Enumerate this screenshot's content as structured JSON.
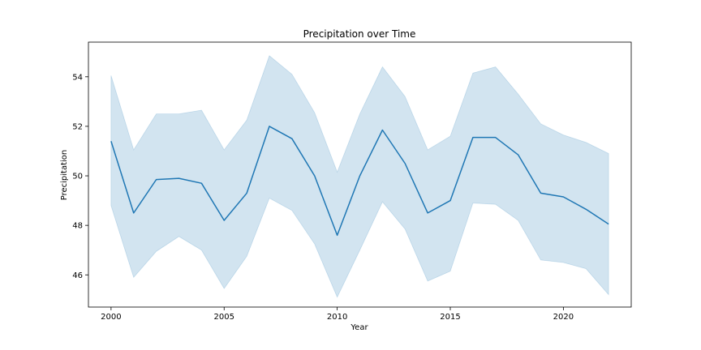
{
  "chart_data": {
    "type": "line",
    "title": "Precipitation over Time",
    "xlabel": "Year",
    "ylabel": "Precipitation",
    "xlim": [
      1999,
      2023
    ],
    "ylim": [
      44.7,
      55.4
    ],
    "xticks": [
      2000,
      2005,
      2010,
      2015,
      2020
    ],
    "yticks": [
      46,
      48,
      50,
      52,
      54
    ],
    "grid": false,
    "colors": {
      "line": "#1f77b4",
      "band": "#1f77b4"
    },
    "series": [
      {
        "x": [
          2000,
          2001,
          2002,
          2003,
          2004,
          2005,
          2006,
          2007,
          2008,
          2009,
          2010,
          2011,
          2012,
          2013,
          2014,
          2015,
          2016,
          2017,
          2018,
          2019,
          2020,
          2021,
          2022
        ],
        "y": [
          51.4,
          48.5,
          49.85,
          49.9,
          49.7,
          48.2,
          49.3,
          52.0,
          51.5,
          50.0,
          47.6,
          50.0,
          51.85,
          50.5,
          48.5,
          49.0,
          51.55,
          51.55,
          50.85,
          49.3,
          49.15,
          48.65,
          48.05
        ],
        "lower": [
          48.8,
          45.9,
          46.95,
          47.55,
          47.0,
          45.45,
          46.75,
          49.1,
          48.6,
          47.25,
          45.1,
          47.0,
          48.95,
          47.85,
          45.75,
          46.15,
          48.9,
          48.85,
          48.2,
          46.6,
          46.5,
          46.25,
          45.2
        ],
        "upper": [
          54.05,
          51.05,
          52.5,
          52.5,
          52.65,
          51.05,
          52.25,
          54.85,
          54.1,
          52.55,
          50.15,
          52.5,
          54.4,
          53.2,
          51.05,
          51.6,
          54.15,
          54.4,
          53.3,
          52.1,
          51.65,
          51.35,
          50.9
        ]
      }
    ]
  }
}
